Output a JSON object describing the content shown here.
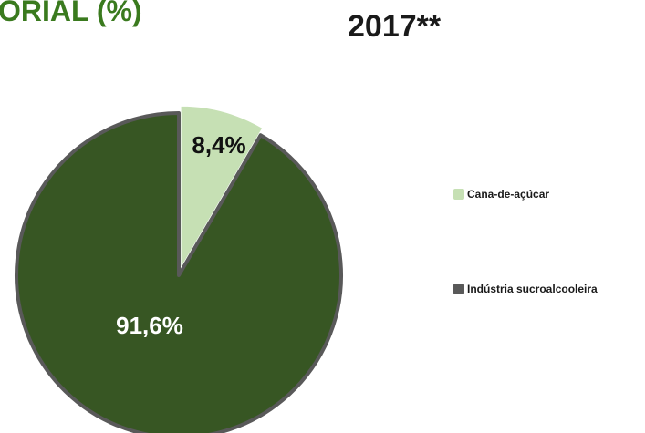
{
  "header": {
    "title_left": "ORIAL (%)",
    "title_right": "2017**"
  },
  "chart_data": {
    "type": "pie",
    "slices": [
      {
        "label": "Cana-de-açúcar",
        "value": 8.4,
        "display": "8,4%",
        "color": "#c6e0b4",
        "exploded": true
      },
      {
        "label": "Indústria sucroalcooleira",
        "value": 91.6,
        "display": "91,6%",
        "color": "#375623",
        "exploded": false
      }
    ],
    "slice_border_color": "#595959",
    "label_text_color": {
      "slice_1": "#111111",
      "slice_2": "#ffffff"
    },
    "legend_placement": "right"
  },
  "legend": {
    "items": [
      {
        "label": "Cana-de-açúcar",
        "color": "#c6e0b4"
      },
      {
        "label": "Indústria sucroalcooleira",
        "color": "#595959"
      }
    ]
  }
}
